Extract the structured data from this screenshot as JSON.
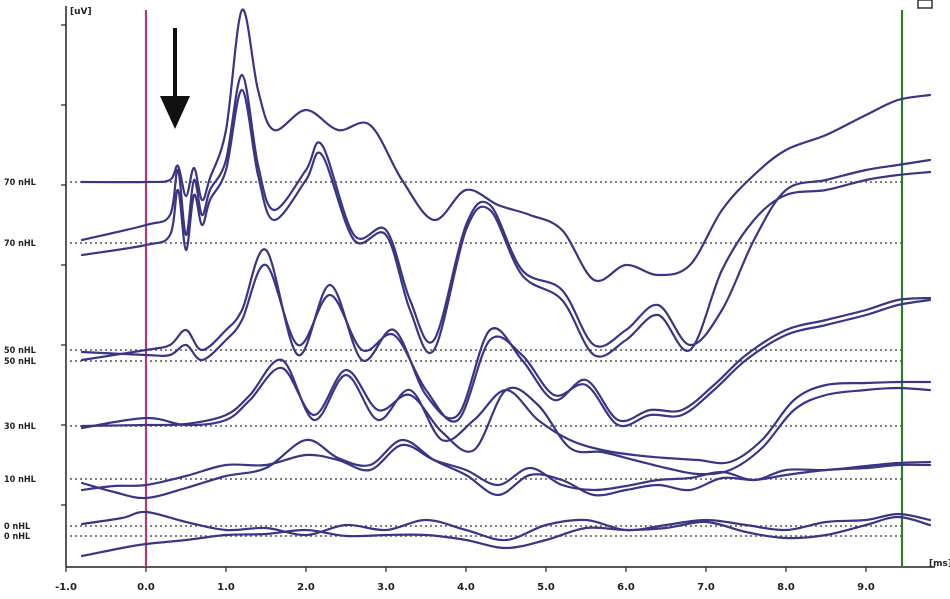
{
  "chart_data": {
    "type": "line",
    "xlabel": "[ms]",
    "ylabel": "[uV]",
    "xlim": [
      -1.0,
      9.8
    ],
    "x_ticks": [
      "-1.0",
      "0.0",
      "1.0",
      "2.0",
      "3.0",
      "4.0",
      "5.0",
      "6.0",
      "7.0",
      "8.0",
      "9.0"
    ],
    "grid": false,
    "markers": [
      {
        "x": 0.0,
        "color": "#b0397a"
      },
      {
        "x": 9.45,
        "color": "#2c7a2c"
      }
    ],
    "arrow_annotation": {
      "x": 0.4
    },
    "level_labels": [
      "70 nHL",
      "70 nHL",
      "50 nHL",
      "50 nHL",
      "30 nHL",
      "10 nHL",
      "0 nHL",
      "0 nHL"
    ],
    "baselines": [
      {
        "label_index": 0,
        "y": 182
      },
      {
        "label_index": 1,
        "y": 243
      },
      {
        "label_index": 2,
        "y": 350
      },
      {
        "label_index": 3,
        "y": 361
      },
      {
        "label_index": 4,
        "y": 426
      },
      {
        "label_index": 5,
        "y": 479
      },
      {
        "label_index": 6,
        "y": 526
      },
      {
        "label_index": 7,
        "y": 536
      }
    ],
    "series": [
      {
        "x": [
          -0.8,
          0.0,
          0.3,
          0.4,
          0.5,
          0.6,
          0.7,
          0.8,
          1.0,
          1.2,
          1.4,
          1.6,
          2.0,
          2.4,
          2.8,
          3.2,
          3.6,
          4.0,
          4.4,
          4.8,
          5.2,
          5.6,
          6.0,
          6.4,
          6.8,
          7.2,
          7.6,
          8.0,
          8.5,
          9.0,
          9.4,
          9.8
        ],
        "y": [
          182,
          182,
          180,
          166,
          196,
          168,
          200,
          178,
          130,
          10,
          90,
          130,
          110,
          130,
          125,
          180,
          220,
          190,
          205,
          215,
          230,
          280,
          265,
          275,
          265,
          210,
          175,
          150,
          135,
          115,
          100,
          95
        ]
      },
      {
        "x": [
          -0.8,
          0.0,
          0.3,
          0.4,
          0.5,
          0.6,
          0.7,
          0.8,
          1.0,
          1.2,
          1.4,
          1.6,
          2.0,
          2.2,
          2.6,
          3.0,
          3.3,
          3.6,
          4.0,
          4.3,
          4.7,
          5.2,
          5.6,
          6.0,
          6.4,
          6.8,
          7.2,
          7.6,
          8.0,
          8.5,
          9.0,
          9.4,
          9.8
        ],
        "y": [
          240,
          225,
          215,
          170,
          235,
          180,
          215,
          190,
          160,
          75,
          165,
          210,
          170,
          145,
          235,
          230,
          300,
          340,
          225,
          205,
          270,
          290,
          345,
          330,
          305,
          345,
          310,
          240,
          190,
          180,
          170,
          165,
          160
        ]
      },
      {
        "x": [
          -0.8,
          0.0,
          0.3,
          0.4,
          0.5,
          0.6,
          0.7,
          0.8,
          1.0,
          1.2,
          1.4,
          1.6,
          2.0,
          2.2,
          2.6,
          3.0,
          3.3,
          3.6,
          4.0,
          4.3,
          4.7,
          5.2,
          5.6,
          6.0,
          6.4,
          6.8,
          7.2,
          7.6,
          8.0,
          8.5,
          9.0,
          9.4,
          9.8
        ],
        "y": [
          255,
          245,
          235,
          190,
          250,
          195,
          225,
          200,
          170,
          90,
          175,
          220,
          180,
          155,
          240,
          235,
          310,
          350,
          230,
          210,
          275,
          300,
          355,
          340,
          315,
          350,
          270,
          220,
          195,
          190,
          180,
          175,
          172
        ]
      },
      {
        "x": [
          -0.8,
          0.0,
          0.3,
          0.5,
          0.7,
          1.0,
          1.2,
          1.5,
          1.9,
          2.3,
          2.7,
          3.1,
          3.5,
          3.9,
          4.3,
          4.7,
          5.1,
          5.5,
          5.9,
          6.3,
          6.7,
          7.1,
          7.5,
          8.0,
          8.5,
          9.0,
          9.4,
          9.8
        ],
        "y": [
          360,
          350,
          345,
          330,
          350,
          330,
          310,
          250,
          355,
          285,
          360,
          330,
          395,
          415,
          330,
          360,
          400,
          380,
          420,
          410,
          410,
          385,
          355,
          330,
          320,
          310,
          300,
          298
        ]
      },
      {
        "x": [
          -0.8,
          0.0,
          0.3,
          0.5,
          0.7,
          1.0,
          1.2,
          1.5,
          1.9,
          2.3,
          2.7,
          3.1,
          3.5,
          3.9,
          4.3,
          4.7,
          5.1,
          5.5,
          5.9,
          6.3,
          6.7,
          7.1,
          7.5,
          8.0,
          8.5,
          9.0,
          9.4,
          9.8
        ],
        "y": [
          352,
          355,
          355,
          345,
          360,
          340,
          320,
          265,
          345,
          295,
          350,
          335,
          390,
          420,
          340,
          355,
          395,
          385,
          425,
          415,
          415,
          390,
          360,
          335,
          325,
          315,
          305,
          300
        ]
      },
      {
        "x": [
          -0.8,
          0.0,
          0.5,
          1.0,
          1.3,
          1.7,
          2.1,
          2.5,
          2.9,
          3.3,
          3.7,
          4.1,
          4.5,
          4.9,
          5.3,
          5.7,
          6.1,
          6.5,
          6.9,
          7.3,
          7.7,
          8.1,
          8.5,
          9.0,
          9.4,
          9.8
        ],
        "y": [
          426,
          425,
          424,
          415,
          395,
          360,
          420,
          375,
          420,
          390,
          440,
          420,
          390,
          420,
          440,
          450,
          455,
          458,
          460,
          462,
          440,
          400,
          385,
          383,
          382,
          382
        ]
      },
      {
        "x": [
          -0.8,
          0.0,
          0.5,
          1.0,
          1.3,
          1.7,
          2.1,
          2.5,
          2.9,
          3.3,
          3.7,
          4.1,
          4.5,
          4.9,
          5.3,
          5.7,
          6.1,
          6.5,
          6.9,
          7.3,
          7.7,
          8.1,
          8.5,
          9.0,
          9.4,
          9.8
        ],
        "y": [
          428,
          418,
          425,
          420,
          400,
          368,
          415,
          370,
          410,
          395,
          432,
          450,
          390,
          405,
          448,
          452,
          460,
          468,
          474,
          470,
          448,
          410,
          395,
          390,
          388,
          390
        ]
      },
      {
        "x": [
          -0.8,
          -0.4,
          0.0,
          0.5,
          1.0,
          1.5,
          2.0,
          2.4,
          2.8,
          3.2,
          3.6,
          4.0,
          4.4,
          4.8,
          5.2,
          5.6,
          6.0,
          6.4,
          6.8,
          7.2,
          7.6,
          8.0,
          8.5,
          9.0,
          9.4,
          9.8
        ],
        "y": [
          483,
          492,
          498,
          488,
          476,
          468,
          440,
          458,
          465,
          440,
          460,
          475,
          495,
          475,
          480,
          495,
          490,
          485,
          490,
          478,
          480,
          475,
          470,
          468,
          465,
          465
        ]
      },
      {
        "x": [
          -0.8,
          -0.4,
          0.0,
          0.5,
          1.0,
          1.5,
          2.0,
          2.4,
          2.8,
          3.2,
          3.6,
          4.0,
          4.4,
          4.8,
          5.2,
          5.6,
          6.0,
          6.4,
          6.8,
          7.2,
          7.6,
          8.0,
          8.5,
          9.0,
          9.4,
          9.8
        ],
        "y": [
          490,
          486,
          485,
          476,
          465,
          465,
          455,
          460,
          470,
          445,
          460,
          470,
          485,
          468,
          485,
          490,
          486,
          480,
          478,
          472,
          480,
          470,
          470,
          466,
          463,
          462
        ]
      },
      {
        "x": [
          -0.8,
          -0.3,
          0.0,
          0.5,
          1.0,
          1.5,
          2.0,
          2.5,
          3.0,
          3.5,
          4.0,
          4.5,
          5.0,
          5.5,
          6.0,
          6.5,
          7.0,
          7.5,
          8.0,
          8.5,
          9.0,
          9.4,
          9.8
        ],
        "y": [
          524,
          518,
          512,
          522,
          530,
          528,
          535,
          525,
          530,
          520,
          530,
          540,
          525,
          520,
          530,
          525,
          520,
          525,
          530,
          522,
          520,
          514,
          520
        ]
      },
      {
        "x": [
          -0.8,
          -0.3,
          0.0,
          0.5,
          1.0,
          1.5,
          2.0,
          2.5,
          3.0,
          3.5,
          4.0,
          4.5,
          5.0,
          5.5,
          6.0,
          6.5,
          7.0,
          7.5,
          8.0,
          8.5,
          9.0,
          9.4,
          9.8
        ],
        "y": [
          556,
          548,
          544,
          540,
          535,
          534,
          530,
          536,
          535,
          535,
          540,
          548,
          540,
          528,
          530,
          528,
          522,
          532,
          538,
          535,
          525,
          517,
          525
        ]
      }
    ]
  }
}
